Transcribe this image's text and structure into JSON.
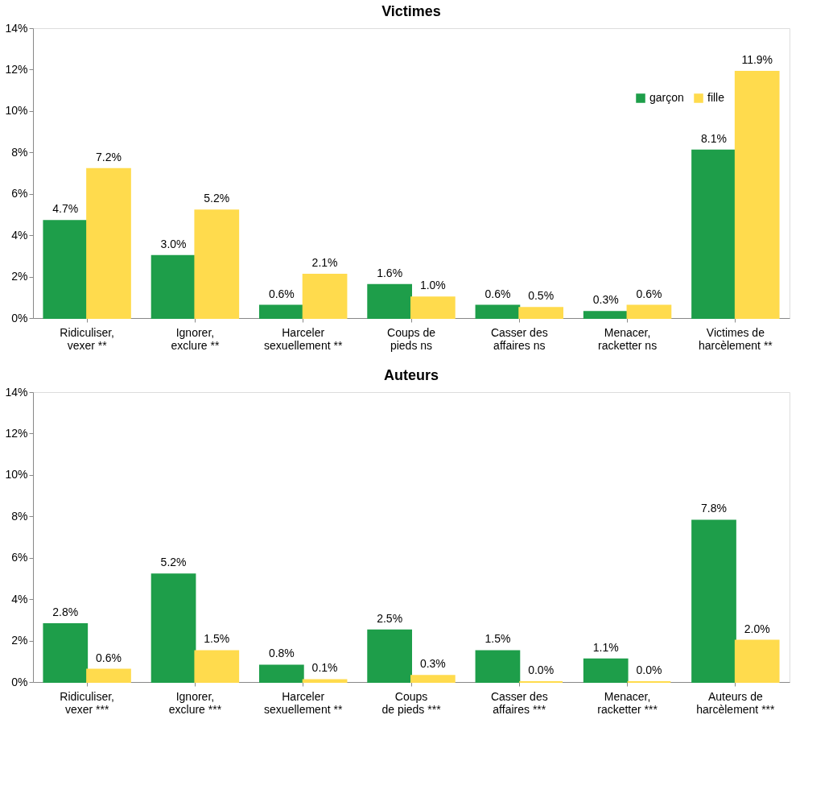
{
  "chart_data": [
    {
      "type": "bar",
      "title": "Victimes",
      "categories": [
        "Ridiculiser,\nvexer **",
        "Ignorer,\nexclure **",
        "Harceler\nsexuellement **",
        "Coups de\npieds ns",
        "Casser des\naffaires ns",
        "Menacer,\nracketter ns",
        "Victimes de\nharcèlement **"
      ],
      "series": [
        {
          "name": "garçon",
          "color": "#1e9e4a",
          "values": [
            4.7,
            3.0,
            0.6,
            1.6,
            0.6,
            0.3,
            8.1
          ],
          "value_labels": [
            "4.7%",
            "3.0%",
            "0.6%",
            "1.6%",
            "0.6%",
            "0.3%",
            "8.1%"
          ]
        },
        {
          "name": "fille",
          "color": "#ffdb4d",
          "values": [
            7.2,
            5.2,
            2.1,
            1.0,
            0.5,
            0.6,
            11.9
          ],
          "value_labels": [
            "7.2%",
            "5.2%",
            "2.1%",
            "1.0%",
            "0.5%",
            "0.6%",
            "11.9%"
          ]
        }
      ],
      "ylim": [
        0,
        14
      ],
      "yticks": [
        {
          "value": 0,
          "label": "0%"
        },
        {
          "value": 2,
          "label": "2%"
        },
        {
          "value": 4,
          "label": "4%"
        },
        {
          "value": 6,
          "label": "6%"
        },
        {
          "value": 8,
          "label": "8%"
        },
        {
          "value": 10,
          "label": "10%"
        },
        {
          "value": 12,
          "label": "12%"
        },
        {
          "value": 14,
          "label": "14%"
        }
      ],
      "grid": false,
      "legend": "top right"
    },
    {
      "type": "bar",
      "title": "Auteurs",
      "categories": [
        "Ridiculiser,\nvexer ***",
        "Ignorer,\nexclure ***",
        "Harceler\nsexuellement **",
        "Coups\nde pieds ***",
        "Casser des\naffaires ***",
        "Menacer,\nracketter ***",
        "Auteurs de\nharcèlement ***"
      ],
      "series": [
        {
          "color": "#1e9e4a",
          "values": [
            2.8,
            5.2,
            0.8,
            2.5,
            1.5,
            1.1,
            7.8
          ],
          "value_labels": [
            "2.8%",
            "5.2%",
            "0.8%",
            "2.5%",
            "1.5%",
            "1.1%",
            "7.8%"
          ]
        },
        {
          "color": "#ffdb4d",
          "values": [
            0.6,
            1.5,
            0.1,
            0.3,
            0.0,
            0.0,
            2.0
          ],
          "value_labels": [
            "0.6%",
            "1.5%",
            "0.1%",
            "0.3%",
            "0.0%",
            "0.0%",
            "2.0%"
          ]
        }
      ],
      "ylim": [
        0,
        14
      ],
      "yticks": [
        {
          "value": 0,
          "label": "0%"
        },
        {
          "value": 2,
          "label": "2%"
        },
        {
          "value": 4,
          "label": "4%"
        },
        {
          "value": 6,
          "label": "6%"
        },
        {
          "value": 8,
          "label": "8%"
        },
        {
          "value": 10,
          "label": "10%"
        },
        {
          "value": 12,
          "label": "12%"
        },
        {
          "value": 14,
          "label": "14%"
        }
      ],
      "grid": false,
      "legend": false
    }
  ]
}
